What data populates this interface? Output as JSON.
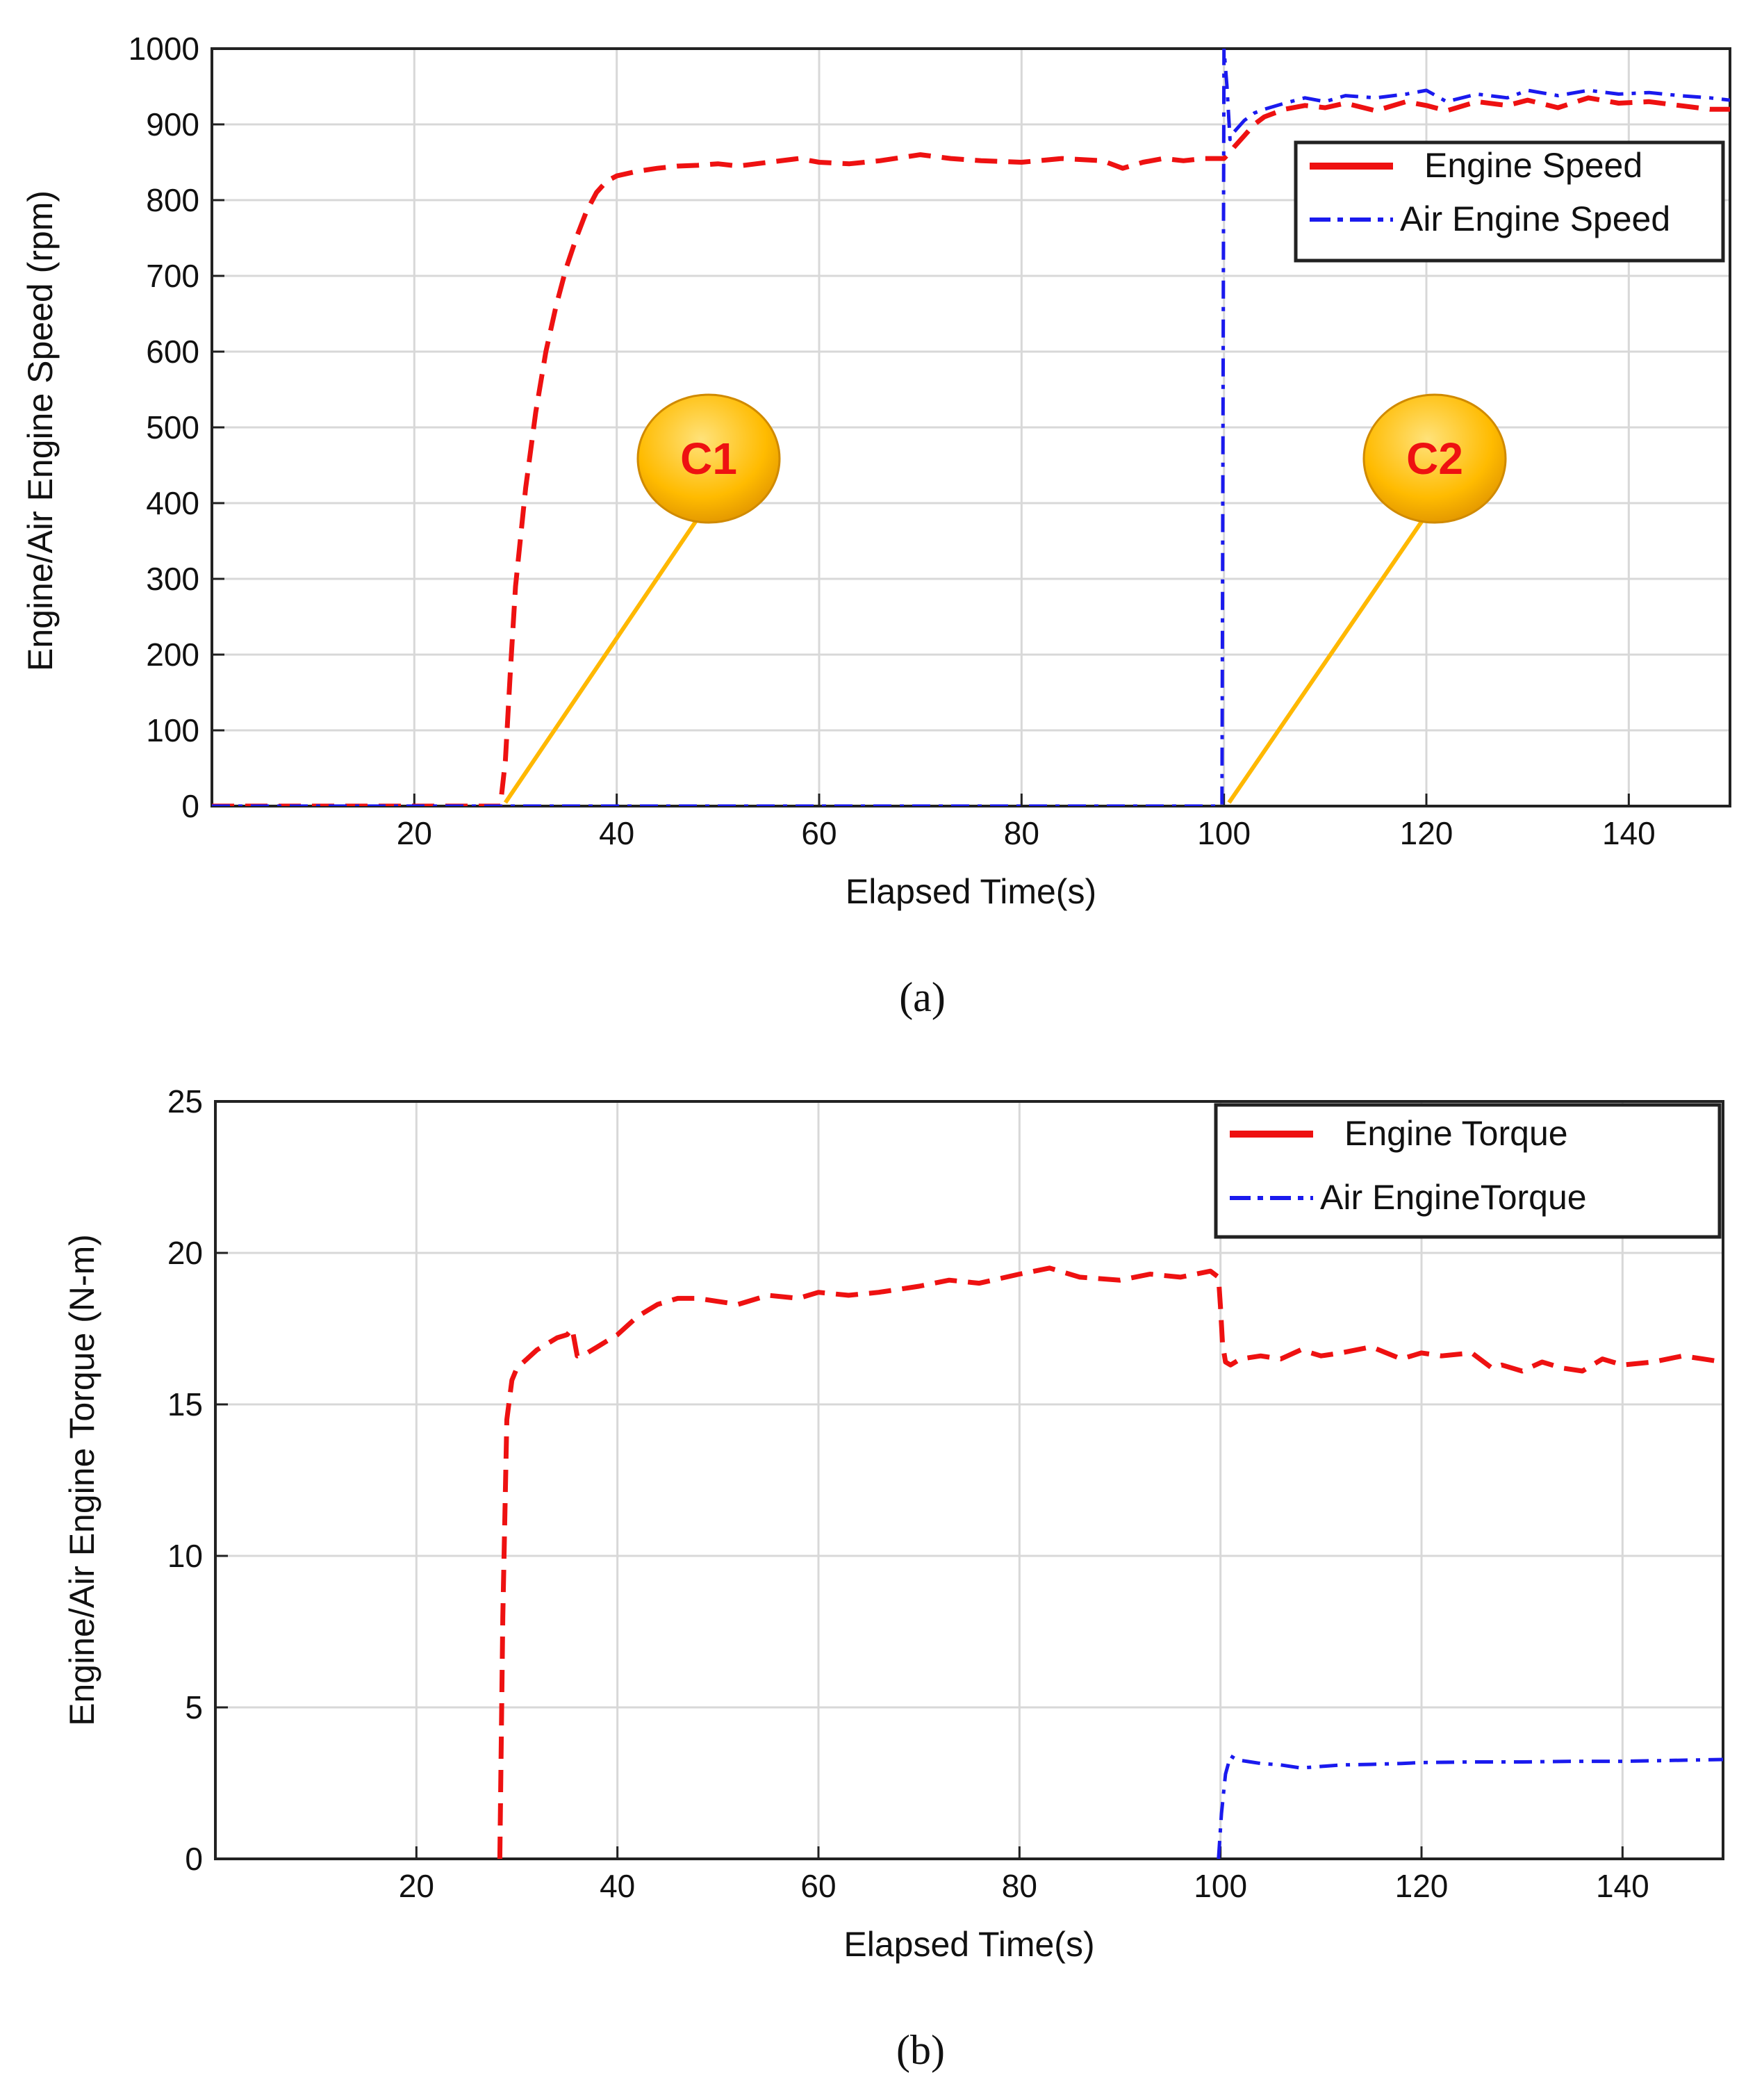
{
  "chart_data": [
    {
      "panel_label": "(a)",
      "type": "line",
      "xlabel": "Elapsed Time(s)",
      "ylabel": "Engine/Air Engine   Speed (rpm)",
      "xlim": [
        0,
        150
      ],
      "ylim": [
        0,
        1000
      ],
      "xticks": [
        20,
        40,
        60,
        80,
        100,
        120,
        140
      ],
      "yticks": [
        0,
        100,
        200,
        300,
        400,
        500,
        600,
        700,
        800,
        900,
        1000
      ],
      "grid": true,
      "legend_position": "top-right",
      "series": [
        {
          "name": "Engine Speed",
          "color": "#ee1111",
          "style": "dashed",
          "x": [
            0,
            10,
            20,
            25,
            28.5,
            29,
            29.5,
            30,
            31,
            32,
            33,
            34,
            35,
            36,
            37,
            38,
            39,
            40,
            42,
            44,
            46,
            48,
            50,
            52,
            55,
            58,
            60,
            63,
            66,
            70,
            73,
            76,
            80,
            84,
            88,
            90,
            92,
            94,
            96,
            98,
            99.5,
            100,
            100.5,
            101,
            102,
            103,
            104,
            106,
            108,
            110,
            112,
            115,
            118,
            120,
            122,
            125,
            128,
            130,
            133,
            136,
            139,
            142,
            145,
            148,
            150
          ],
          "y": [
            0,
            0,
            0,
            0,
            0,
            60,
            180,
            290,
            420,
            520,
            600,
            660,
            710,
            750,
            785,
            810,
            825,
            832,
            838,
            842,
            845,
            846,
            848,
            845,
            850,
            855,
            850,
            848,
            852,
            860,
            855,
            852,
            850,
            855,
            852,
            842,
            850,
            855,
            852,
            855,
            855,
            855,
            862,
            870,
            885,
            900,
            910,
            920,
            925,
            922,
            928,
            918,
            930,
            925,
            918,
            930,
            925,
            932,
            922,
            935,
            928,
            930,
            925,
            920,
            920
          ]
        },
        {
          "name": "Air Engine Speed",
          "color": "#1a1aee",
          "style": "dash-dot",
          "x": [
            0,
            20,
            40,
            60,
            80,
            99,
            99.8,
            100,
            100.3,
            100.6,
            101,
            102,
            103,
            104,
            106,
            108,
            110,
            112,
            115,
            118,
            120,
            122,
            125,
            128,
            130,
            133,
            136,
            139,
            142,
            145,
            148,
            150
          ],
          "y": [
            0,
            0,
            0,
            0,
            0,
            0,
            0,
            1000,
            950,
            880,
            890,
            905,
            915,
            920,
            928,
            935,
            930,
            938,
            935,
            940,
            945,
            930,
            940,
            935,
            945,
            938,
            945,
            940,
            942,
            938,
            935,
            932
          ]
        }
      ],
      "annotations": [
        {
          "label": "C1",
          "points_to_x": 29,
          "points_to_y": 0
        },
        {
          "label": "C2",
          "points_to_x": 100.5,
          "points_to_y": 0
        }
      ],
      "callout_color": "#ffb800"
    },
    {
      "panel_label": "(b)",
      "type": "line",
      "xlabel": "Elapsed Time(s)",
      "ylabel": "Engine/Air Engine  Torque (N-m)",
      "xlim": [
        0,
        150
      ],
      "ylim": [
        0,
        25
      ],
      "xticks": [
        20,
        40,
        60,
        80,
        100,
        120,
        140
      ],
      "yticks": [
        0,
        5,
        10,
        15,
        20,
        25
      ],
      "grid": true,
      "legend_position": "top-right",
      "series": [
        {
          "name": "Engine Torque",
          "color": "#ee1111",
          "style": "dashed",
          "x": [
            28.3,
            28.6,
            29,
            29.5,
            30,
            31,
            32,
            33,
            34,
            35,
            35.5,
            36,
            37,
            38,
            39,
            40,
            41,
            42,
            43,
            44,
            45,
            46,
            48,
            50,
            52,
            55,
            58,
            60,
            63,
            66,
            70,
            73,
            76,
            80,
            83,
            86,
            90,
            93,
            96,
            99,
            99.8,
            100,
            100.2,
            100.5,
            101,
            102,
            104,
            106,
            108,
            110,
            112,
            115,
            118,
            120,
            122,
            125,
            127,
            128,
            130,
            132,
            134,
            136,
            138,
            140,
            143,
            146,
            148,
            150
          ],
          "y": [
            0,
            8,
            14.5,
            15.8,
            16.2,
            16.5,
            16.8,
            17.0,
            17.2,
            17.3,
            17.5,
            16.6,
            16.7,
            16.9,
            17.1,
            17.3,
            17.6,
            17.9,
            18.1,
            18.3,
            18.4,
            18.5,
            18.5,
            18.4,
            18.3,
            18.6,
            18.5,
            18.7,
            18.6,
            18.7,
            18.9,
            19.1,
            19.0,
            19.3,
            19.5,
            19.2,
            19.1,
            19.3,
            19.2,
            19.4,
            19.2,
            18.2,
            17.0,
            16.4,
            16.3,
            16.5,
            16.6,
            16.5,
            16.8,
            16.6,
            16.7,
            16.9,
            16.5,
            16.7,
            16.6,
            16.7,
            16.2,
            16.3,
            16.1,
            16.4,
            16.2,
            16.1,
            16.5,
            16.3,
            16.4,
            16.6,
            16.5,
            16.4
          ]
        },
        {
          "name": "Air EngineTorque",
          "color": "#1a1aee",
          "style": "dash-dot",
          "x": [
            99.8,
            100.1,
            100.5,
            101,
            101.5,
            102,
            103,
            104,
            106,
            108,
            110,
            112,
            115,
            118,
            120,
            125,
            130,
            135,
            140,
            145,
            150
          ],
          "y": [
            0,
            1.5,
            2.8,
            3.4,
            3.3,
            3.25,
            3.2,
            3.15,
            3.1,
            3.0,
            3.05,
            3.1,
            3.12,
            3.15,
            3.18,
            3.2,
            3.2,
            3.22,
            3.22,
            3.25,
            3.28
          ]
        }
      ]
    }
  ]
}
